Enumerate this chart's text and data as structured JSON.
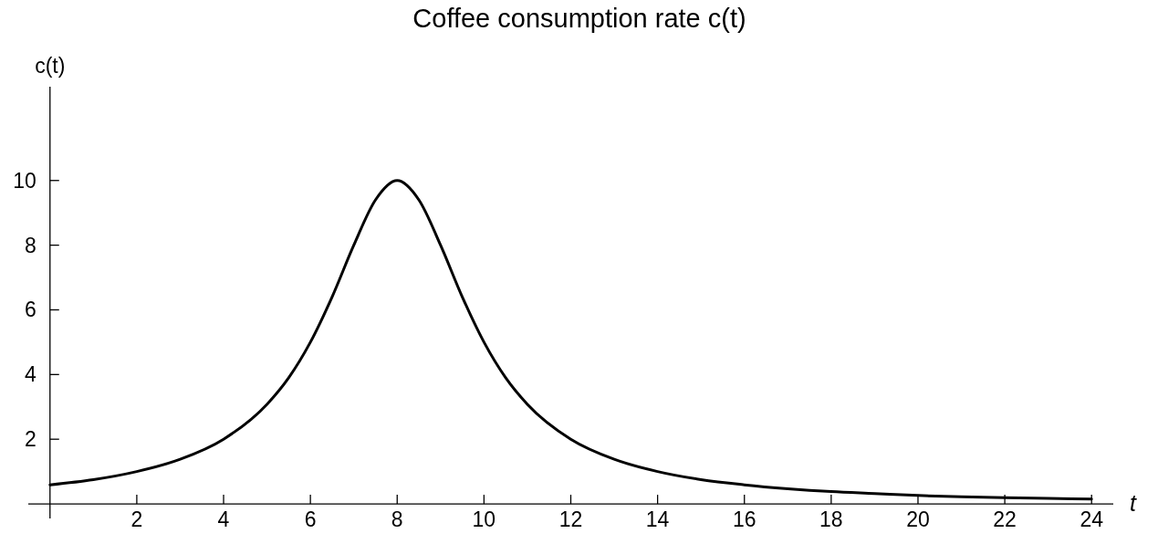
{
  "chart_data": {
    "type": "line",
    "title": "Coffee consumption rate c(t)",
    "xlabel": "t",
    "ylabel": "c(t)",
    "x": [
      0,
      1,
      2,
      3,
      4,
      5,
      5.5,
      6,
      6.5,
      7,
      7.5,
      8,
      8.5,
      9,
      9.5,
      10,
      10.5,
      11,
      12,
      13,
      14,
      15,
      16,
      17,
      18,
      19,
      20,
      21,
      22,
      23,
      24
    ],
    "series": [
      {
        "color": "#000000",
        "values": [
          0.59,
          0.75,
          1.0,
          1.38,
          2.0,
          3.08,
          3.9,
          5.0,
          6.4,
          8.0,
          9.4,
          10,
          9.4,
          8.0,
          6.4,
          5.0,
          3.9,
          3.08,
          2.0,
          1.38,
          1.0,
          0.75,
          0.59,
          0.47,
          0.38,
          0.32,
          0.26,
          0.22,
          0.19,
          0.17,
          0.15
        ]
      }
    ],
    "xlim": [
      -0.5,
      24.5
    ],
    "ylim": [
      -0.45,
      12.9
    ],
    "xticks": [
      2,
      4,
      6,
      8,
      10,
      12,
      14,
      16,
      18,
      20,
      22,
      24
    ],
    "yticks": [
      2,
      4,
      6,
      8,
      10
    ],
    "grid": false,
    "marker": "none",
    "line_style": "solid"
  }
}
